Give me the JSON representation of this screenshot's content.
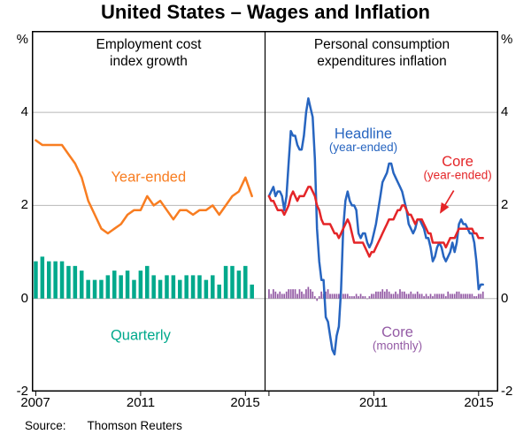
{
  "title": "United States – Wages and Inflation",
  "source": {
    "label": "Source:",
    "value": "Thomson Reuters"
  },
  "colors": {
    "gridline": "#b8b8b8",
    "border": "#000000",
    "orange": "#F87D21",
    "teal": "#00A98C",
    "blue": "#2765C0",
    "red": "#E42528",
    "purple": "#945BA5"
  },
  "axis": {
    "percent": "%",
    "y_tick_labels": [
      "4",
      "2",
      "0",
      "-2"
    ],
    "y_tick_values": [
      4,
      2,
      0,
      -2
    ],
    "ymin": -2,
    "ymax": 5.75,
    "xmin": 2006.85,
    "xmax": 2015.75,
    "gridline_values": [
      0,
      2,
      4
    ],
    "x_tick_years": [
      2007,
      2011,
      2015
    ],
    "x_tick_labels_left": [
      "2007",
      "2011",
      "2015"
    ],
    "x_tick_labels_right": [
      "2011",
      "2015"
    ]
  },
  "chart_data": [
    {
      "panel": "left",
      "type": "line+bar",
      "title_lines": [
        "Employment cost",
        "index growth"
      ],
      "x_start": 2007.0,
      "x_step": 0.25,
      "bar_width": 4.5,
      "series": [
        {
          "name": "Quarterly",
          "type": "bar",
          "color": "#00A98C",
          "values": [
            0.8,
            0.9,
            0.8,
            0.8,
            0.8,
            0.7,
            0.7,
            0.6,
            0.4,
            0.4,
            0.4,
            0.5,
            0.6,
            0.5,
            0.6,
            0.4,
            0.6,
            0.7,
            0.5,
            0.4,
            0.5,
            0.5,
            0.4,
            0.5,
            0.5,
            0.5,
            0.4,
            0.5,
            0.3,
            0.7,
            0.7,
            0.6,
            0.7,
            0.3
          ]
        },
        {
          "name": "Year-ended",
          "type": "line",
          "color": "#F87D21",
          "values": [
            3.4,
            3.3,
            3.3,
            3.3,
            3.3,
            3.1,
            2.9,
            2.6,
            2.1,
            1.8,
            1.5,
            1.4,
            1.5,
            1.6,
            1.8,
            1.9,
            1.9,
            2.2,
            2.0,
            2.1,
            1.9,
            1.7,
            1.9,
            1.9,
            1.8,
            1.9,
            1.9,
            2.0,
            1.8,
            2.0,
            2.2,
            2.3,
            2.6,
            2.2
          ]
        }
      ],
      "annotations": [
        {
          "text": "Year-ended",
          "x": 2011.3,
          "y": 2.62,
          "color": "#F87D21"
        },
        {
          "text": "Quarterly",
          "x": 2011.0,
          "y": -0.78,
          "color": "#00A98C"
        }
      ],
      "arrows": []
    },
    {
      "panel": "right",
      "type": "line+bar",
      "title_lines": [
        "Personal consumption",
        "expenditures inflation"
      ],
      "x_start": 2007.0,
      "x_step": 0.0833333,
      "bar_width": 1.7,
      "series": [
        {
          "name": "Core (monthly)",
          "type": "bar",
          "color": "#945BA5",
          "values": [
            0.2,
            0.1,
            0.2,
            0.15,
            0.1,
            0.15,
            0.1,
            0.1,
            0.15,
            0.2,
            0.2,
            0.2,
            0.2,
            0.1,
            0.2,
            0.15,
            0.1,
            0.2,
            0.25,
            0.2,
            0.15,
            0.05,
            -0.05,
            0.05,
            0.15,
            0.1,
            0.15,
            0.2,
            0.1,
            0.1,
            0.1,
            0.1,
            0.1,
            0.15,
            0.1,
            0.1,
            0.1,
            0.05,
            0.05,
            0.05,
            0.1,
            0.05,
            0.1,
            0.05,
            0.05,
            0.0,
            0.05,
            0.1,
            0.1,
            0.15,
            0.15,
            0.15,
            0.2,
            0.15,
            0.2,
            0.15,
            0.1,
            0.1,
            0.15,
            0.1,
            0.2,
            0.15,
            0.15,
            0.1,
            0.1,
            0.15,
            0.1,
            0.1,
            0.15,
            0.1,
            0.1,
            0.05,
            0.1,
            0.05,
            0.1,
            0.05,
            0.1,
            0.1,
            0.1,
            0.1,
            0.1,
            0.05,
            0.15,
            0.1,
            0.1,
            0.1,
            0.15,
            0.15,
            0.1,
            0.1,
            0.1,
            0.1,
            0.1,
            0.1,
            0.05,
            0.05,
            0.1,
            0.1,
            0.15
          ]
        },
        {
          "name": "Headline (year-ended)",
          "type": "line",
          "color": "#2765C0",
          "values": [
            2.2,
            2.3,
            2.4,
            2.2,
            2.3,
            2.3,
            2.2,
            1.9,
            2.2,
            2.9,
            3.6,
            3.5,
            3.5,
            3.3,
            3.2,
            3.2,
            3.5,
            4.0,
            4.3,
            4.1,
            3.9,
            3.0,
            1.5,
            0.8,
            0.4,
            0.4,
            -0.4,
            -0.5,
            -0.8,
            -1.1,
            -1.2,
            -0.8,
            -0.6,
            0.2,
            1.5,
            2.1,
            2.3,
            2.1,
            2.0,
            2.0,
            1.9,
            1.4,
            1.3,
            1.4,
            1.4,
            1.2,
            1.1,
            1.2,
            1.4,
            1.6,
            1.9,
            2.2,
            2.5,
            2.6,
            2.7,
            2.9,
            2.9,
            2.7,
            2.6,
            2.5,
            2.4,
            2.3,
            2.1,
            1.9,
            1.6,
            1.5,
            1.4,
            1.5,
            1.7,
            1.7,
            1.6,
            1.5,
            1.3,
            1.3,
            1.1,
            0.8,
            0.9,
            1.1,
            1.2,
            1.1,
            0.9,
            0.8,
            0.9,
            1.0,
            1.2,
            1.0,
            1.2,
            1.6,
            1.7,
            1.6,
            1.6,
            1.5,
            1.4,
            1.4,
            1.2,
            0.8,
            0.2,
            0.3,
            0.3
          ]
        },
        {
          "name": "Core (year-ended)",
          "type": "line",
          "color": "#E42528",
          "values": [
            2.2,
            2.1,
            2.1,
            2.0,
            1.9,
            1.9,
            1.9,
            1.8,
            1.9,
            2.0,
            2.2,
            2.3,
            2.2,
            2.1,
            2.2,
            2.2,
            2.2,
            2.3,
            2.4,
            2.4,
            2.3,
            2.2,
            2.0,
            1.9,
            1.7,
            1.6,
            1.6,
            1.6,
            1.6,
            1.5,
            1.4,
            1.4,
            1.3,
            1.4,
            1.5,
            1.6,
            1.7,
            1.6,
            1.4,
            1.2,
            1.2,
            1.2,
            1.2,
            1.2,
            1.1,
            1.0,
            0.9,
            1.0,
            1.0,
            1.1,
            1.2,
            1.3,
            1.4,
            1.5,
            1.6,
            1.7,
            1.7,
            1.7,
            1.8,
            1.9,
            1.9,
            2.0,
            2.0,
            1.9,
            1.8,
            1.8,
            1.7,
            1.6,
            1.7,
            1.7,
            1.7,
            1.6,
            1.5,
            1.4,
            1.4,
            1.2,
            1.2,
            1.2,
            1.2,
            1.2,
            1.2,
            1.1,
            1.2,
            1.3,
            1.3,
            1.3,
            1.4,
            1.5,
            1.5,
            1.5,
            1.5,
            1.5,
            1.5,
            1.5,
            1.4,
            1.4,
            1.3,
            1.3,
            1.3
          ]
        }
      ],
      "annotations": [
        {
          "text": "Headline",
          "sub": "(year-ended)",
          "x": 2010.6,
          "y": 3.55,
          "color": "#2765C0"
        },
        {
          "text": "Core",
          "sub": "(year-ended)",
          "x": 2014.2,
          "y": 2.95,
          "color": "#E42528"
        },
        {
          "text": "Core",
          "sub": "(monthly)",
          "x": 2011.9,
          "y": -0.72,
          "color": "#945BA5"
        }
      ],
      "arrows": [
        {
          "from": [
            2014.05,
            2.32
          ],
          "to": [
            2013.55,
            1.85
          ],
          "color": "#E42528"
        }
      ]
    }
  ]
}
